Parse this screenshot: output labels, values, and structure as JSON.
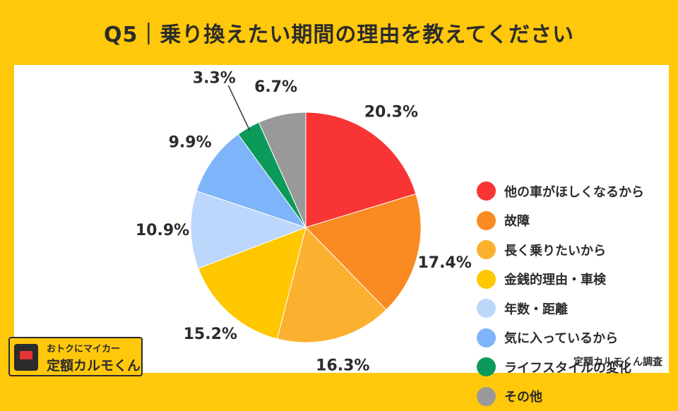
{
  "header": {
    "title": "Q5｜乗り換えたい期間の理由を教えてください"
  },
  "chart_data": {
    "type": "pie",
    "title": "Q5｜乗り換えたい期間の理由を教えてください",
    "slices": [
      {
        "label": "他の車がほしくなるから",
        "value": 20.3,
        "display": "20.3%",
        "color": "#F93434"
      },
      {
        "label": "故障",
        "value": 17.4,
        "display": "17.4%",
        "color": "#FA8A22"
      },
      {
        "label": "長く乗りたいから",
        "value": 16.3,
        "display": "16.3%",
        "color": "#FBB12F"
      },
      {
        "label": "金銭的理由・車検",
        "value": 15.2,
        "display": "15.2%",
        "color": "#FFC700"
      },
      {
        "label": "年数・距離",
        "value": 10.9,
        "display": "10.9%",
        "color": "#BCD7FB"
      },
      {
        "label": "気に入っているから",
        "value": 9.9,
        "display": "9.9%",
        "color": "#7DB4FA"
      },
      {
        "label": "ライフスタイルの変化",
        "value": 3.3,
        "display": "3.3%",
        "color": "#0B9A5A"
      },
      {
        "label": "その他",
        "value": 6.7,
        "display": "6.7%",
        "color": "#999999"
      }
    ],
    "legend_position": "right"
  },
  "source": "定額カルモくん調査",
  "logo": {
    "tagline": "おトクにマイカー",
    "name": "定額カルモくん"
  }
}
